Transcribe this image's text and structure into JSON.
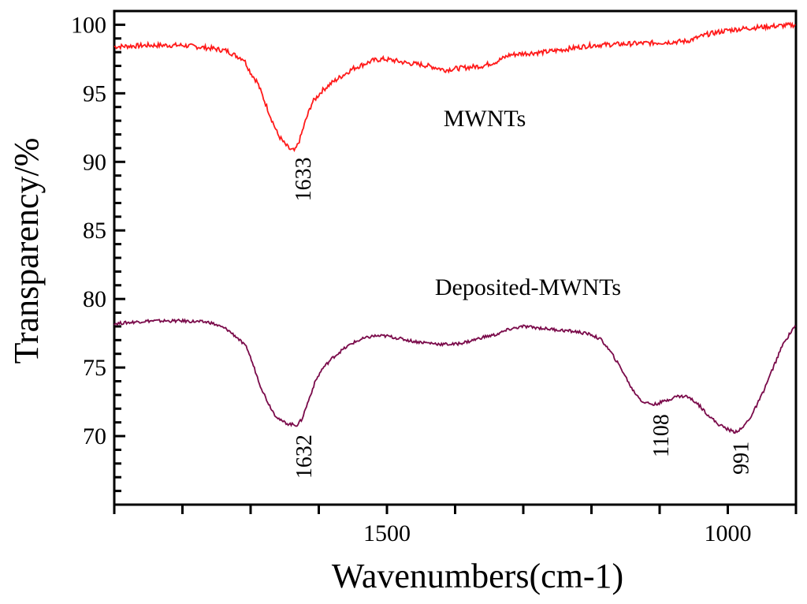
{
  "chart_data": {
    "type": "line",
    "title": "",
    "xlabel": "Wavenumbers(cm-1)",
    "ylabel": "Transparency/%",
    "xlim": [
      1900,
      900
    ],
    "ylim": [
      65,
      101
    ],
    "x_reversed": true,
    "x_ticks_major": [
      1500,
      1000
    ],
    "x_ticks_minor_step": 100,
    "y_ticks_major": [
      70,
      75,
      80,
      85,
      90,
      95,
      100
    ],
    "y_ticks_minor_step": 1,
    "grid": false,
    "colors": {
      "mwnts": "#ff1a1a",
      "deposited": "#7a0a4a"
    },
    "series": [
      {
        "name": "MWNTs",
        "label_text": "MWNTs",
        "points": [
          [
            1900,
            98.4
          ],
          [
            1850,
            98.5
          ],
          [
            1800,
            98.5
          ],
          [
            1760,
            98.3
          ],
          [
            1735,
            98.1
          ],
          [
            1720,
            97.7
          ],
          [
            1710,
            97.5
          ],
          [
            1700,
            96.5
          ],
          [
            1690,
            95.8
          ],
          [
            1680,
            94.5
          ],
          [
            1670,
            93.2
          ],
          [
            1660,
            92.0
          ],
          [
            1650,
            91.3
          ],
          [
            1642,
            90.9
          ],
          [
            1635,
            90.8
          ],
          [
            1628,
            91.6
          ],
          [
            1620,
            92.9
          ],
          [
            1610,
            94.3
          ],
          [
            1595,
            95.2
          ],
          [
            1580,
            95.8
          ],
          [
            1565,
            96.3
          ],
          [
            1550,
            96.8
          ],
          [
            1535,
            97.1
          ],
          [
            1520,
            97.4
          ],
          [
            1505,
            97.5
          ],
          [
            1490,
            97.4
          ],
          [
            1470,
            97.2
          ],
          [
            1450,
            97.1
          ],
          [
            1430,
            96.9
          ],
          [
            1415,
            96.7
          ],
          [
            1400,
            96.8
          ],
          [
            1380,
            96.9
          ],
          [
            1360,
            97.0
          ],
          [
            1340,
            97.3
          ],
          [
            1320,
            97.8
          ],
          [
            1300,
            97.9
          ],
          [
            1270,
            98.0
          ],
          [
            1240,
            98.2
          ],
          [
            1200,
            98.5
          ],
          [
            1150,
            98.6
          ],
          [
            1100,
            98.7
          ],
          [
            1060,
            98.8
          ],
          [
            1030,
            99.3
          ],
          [
            1000,
            99.6
          ],
          [
            960,
            99.8
          ],
          [
            930,
            99.9
          ],
          [
            900,
            100.0
          ]
        ],
        "annotations": [
          {
            "x": 1633,
            "text": "1633"
          }
        ]
      },
      {
        "name": "Deposited-MWNTs",
        "label_text": "Deposited-MWNTs",
        "points": [
          [
            1900,
            78.2
          ],
          [
            1850,
            78.4
          ],
          [
            1800,
            78.4
          ],
          [
            1760,
            78.3
          ],
          [
            1735,
            77.8
          ],
          [
            1720,
            77.2
          ],
          [
            1705,
            76.4
          ],
          [
            1695,
            75.0
          ],
          [
            1685,
            73.6
          ],
          [
            1675,
            72.5
          ],
          [
            1665,
            71.6
          ],
          [
            1655,
            71.1
          ],
          [
            1645,
            70.9
          ],
          [
            1632,
            70.8
          ],
          [
            1625,
            71.2
          ],
          [
            1615,
            72.6
          ],
          [
            1605,
            74.0
          ],
          [
            1595,
            74.9
          ],
          [
            1580,
            75.7
          ],
          [
            1565,
            76.3
          ],
          [
            1550,
            76.8
          ],
          [
            1535,
            77.1
          ],
          [
            1520,
            77.3
          ],
          [
            1500,
            77.3
          ],
          [
            1480,
            77.1
          ],
          [
            1460,
            76.9
          ],
          [
            1440,
            76.8
          ],
          [
            1420,
            76.7
          ],
          [
            1400,
            76.7
          ],
          [
            1380,
            76.9
          ],
          [
            1360,
            77.2
          ],
          [
            1340,
            77.4
          ],
          [
            1320,
            77.8
          ],
          [
            1300,
            78.0
          ],
          [
            1280,
            77.9
          ],
          [
            1260,
            77.8
          ],
          [
            1240,
            77.7
          ],
          [
            1220,
            77.6
          ],
          [
            1200,
            77.4
          ],
          [
            1185,
            77.0
          ],
          [
            1170,
            76.0
          ],
          [
            1155,
            74.8
          ],
          [
            1140,
            73.4
          ],
          [
            1125,
            72.5
          ],
          [
            1108,
            72.3
          ],
          [
            1090,
            72.6
          ],
          [
            1075,
            72.9
          ],
          [
            1060,
            72.9
          ],
          [
            1045,
            72.4
          ],
          [
            1030,
            71.6
          ],
          [
            1015,
            70.9
          ],
          [
            1000,
            70.5
          ],
          [
            991,
            70.3
          ],
          [
            980,
            70.5
          ],
          [
            965,
            71.5
          ],
          [
            950,
            73.0
          ],
          [
            935,
            74.8
          ],
          [
            920,
            76.6
          ],
          [
            905,
            77.8
          ],
          [
            900,
            78.1
          ]
        ],
        "annotations": [
          {
            "x": 1632,
            "text": "1632"
          },
          {
            "x": 1108,
            "text": "1108"
          },
          {
            "x": 991,
            "text": "991"
          }
        ]
      }
    ]
  }
}
